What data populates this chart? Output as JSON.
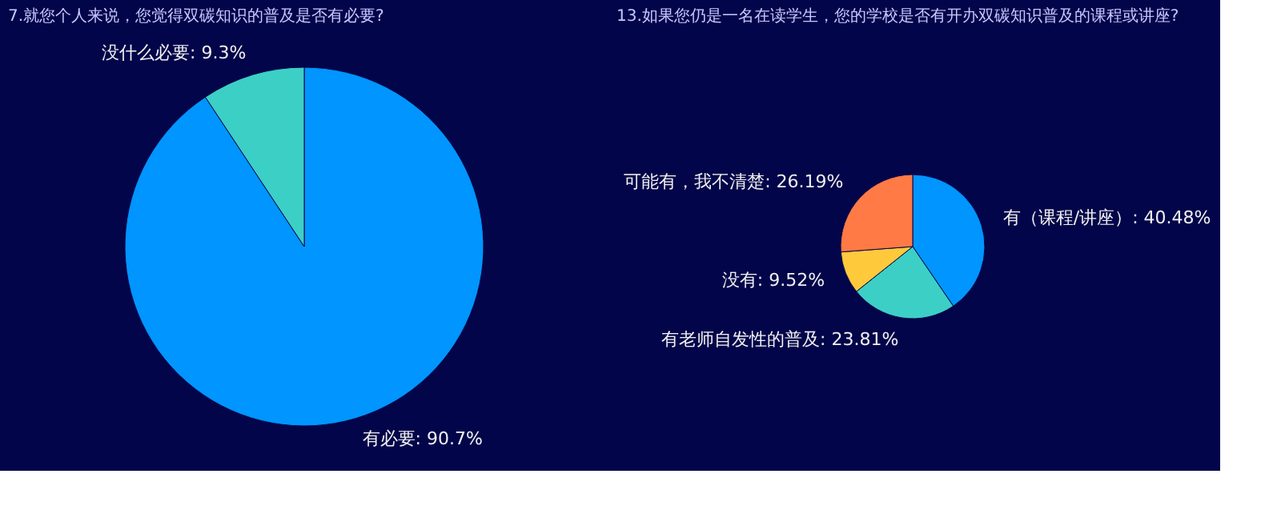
{
  "chart_data": [
    {
      "type": "pie",
      "title": "7.就您个人来说，您觉得双碳知识的普及是否有必要?",
      "categories": [
        "有必要",
        "没什么必要"
      ],
      "values": [
        90.7,
        9.3
      ],
      "colors": [
        "#0095ff",
        "#3ccfc6"
      ],
      "value_labels": [
        "90.7%",
        "9.3%"
      ]
    },
    {
      "type": "pie",
      "title": "13.如果您仍是一名在读学生，您的学校是否有开办双碳知识普及的课程或讲座?",
      "categories": [
        "有（课程/讲座）",
        "有老师自发性的普及",
        "没有",
        "可能有，我不清楚"
      ],
      "values": [
        40.48,
        23.81,
        9.52,
        26.19
      ],
      "colors": [
        "#0095ff",
        "#3ccfc6",
        "#ffc93c",
        "#ff7a45"
      ],
      "value_labels": [
        "40.48%",
        "23.81%",
        "9.52%",
        "26.19%"
      ]
    }
  ]
}
